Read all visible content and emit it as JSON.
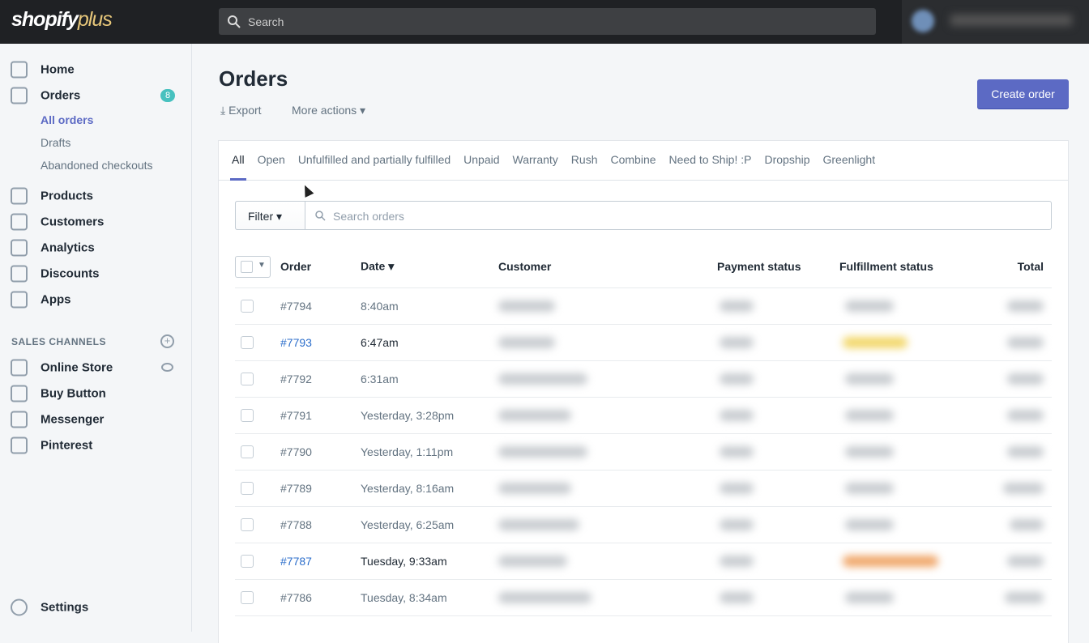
{
  "header": {
    "logo": "shopify",
    "logo_plus": "plus",
    "search": "Search"
  },
  "nav": {
    "items": [
      {
        "label": "Home"
      },
      {
        "label": "Orders",
        "badge": "8",
        "subitems": [
          "All orders",
          "Drafts",
          "Abandoned checkouts"
        ]
      },
      {
        "label": "Products"
      },
      {
        "label": "Customers"
      },
      {
        "label": "Analytics"
      },
      {
        "label": "Discounts"
      },
      {
        "label": "Apps"
      }
    ],
    "sales_channels": {
      "heading": "SALES CHANNELS",
      "items": [
        "Online Store",
        "Buy Button",
        "Messenger",
        "Pinterest"
      ]
    },
    "settings": "Settings"
  },
  "page": {
    "title": "Orders",
    "export": "Export",
    "more_actions": "More actions",
    "create": "Create order"
  },
  "tabs": [
    "All",
    "Open",
    "Unfulfilled and partially fulfilled",
    "Unpaid",
    "Warranty",
    "Rush",
    "Combine",
    "Need to Ship! :P",
    "Dropship",
    "Greenlight"
  ],
  "filter": {
    "button": "Filter",
    "search": "Search orders"
  },
  "table": {
    "headers": [
      "Order",
      "Date",
      "Customer",
      "Payment status",
      "Fulfillment status",
      "Total"
    ],
    "rows": [
      [
        "#7794",
        "8:40am"
      ],
      [
        "#7793",
        "6:47am"
      ],
      [
        "#7792",
        "6:31am"
      ],
      [
        "#7791",
        "Yesterday, 3:28pm"
      ],
      [
        "#7790",
        "Yesterday, 1:11pm"
      ],
      [
        "#7789",
        "Yesterday, 8:16am"
      ],
      [
        "#7788",
        "Yesterday, 6:25am"
      ],
      [
        "#7787",
        "Tuesday, 9:33am"
      ],
      [
        "#7786",
        "Tuesday, 8:34am"
      ]
    ]
  }
}
